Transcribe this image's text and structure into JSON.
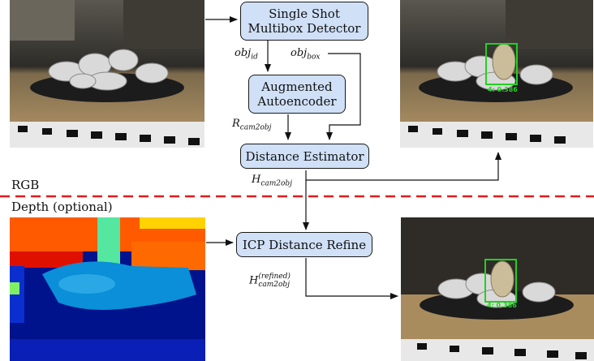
{
  "boxes": {
    "ssd_line1": "Single Shot",
    "ssd_line2": "Multibox Detector",
    "aae_line1": "Augmented",
    "aae_line2": "Autoencoder",
    "dist": "Distance Estimator",
    "icp": "ICP Distance Refine"
  },
  "labels": {
    "obj_id_base": "obj",
    "obj_id_sub": "id",
    "obj_box_base": "obj",
    "obj_box_sub": "box",
    "r_base": "R",
    "r_sub": "cam2obj",
    "h_base": "H",
    "h_sub": "cam2obj",
    "hr_base": "H",
    "hr_sup": "(refined)",
    "hr_sub": "cam2obj"
  },
  "sections": {
    "rgb": "RGB",
    "depth": "Depth (optional)"
  },
  "detections": {
    "top_score": "4: 0.386",
    "bottom_score": "4: 0.386"
  },
  "colors": {
    "box_fill": "#cfe0f7",
    "divider": "#e31b1b",
    "detection": "#22d022"
  }
}
